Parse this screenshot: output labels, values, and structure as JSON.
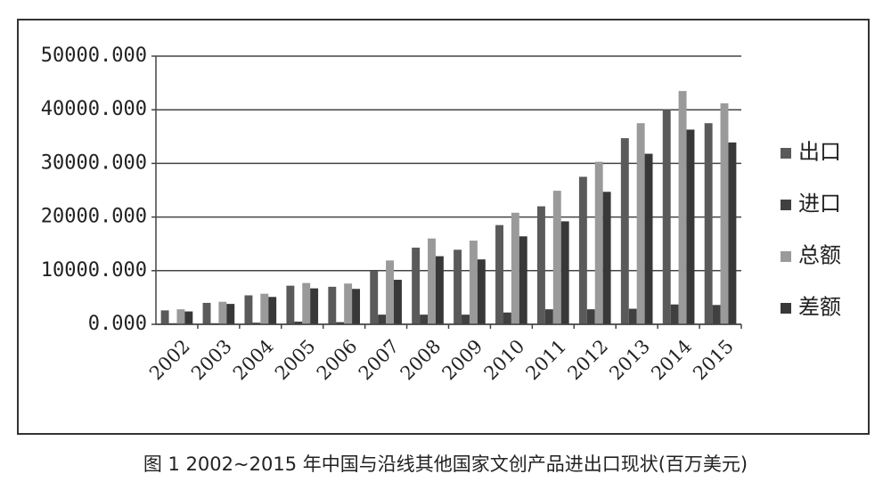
{
  "chart_data": {
    "type": "bar",
    "title": "图 1   2002~2015 年中国与沿线其他国家文创产品进出口现状(百万美元)",
    "categories": [
      "2002",
      "2003",
      "2004",
      "2005",
      "2006",
      "2007",
      "2008",
      "2009",
      "2010",
      "2011",
      "2012",
      "2013",
      "2014",
      "2015"
    ],
    "series": [
      {
        "name": "出口",
        "color": "#5a5a5a",
        "values": [
          2600,
          4000,
          5400,
          7200,
          7000,
          10000,
          14300,
          13900,
          18500,
          22000,
          27500,
          34700,
          40000,
          37500
        ]
      },
      {
        "name": "进口",
        "color": "#404040",
        "values": [
          200,
          200,
          300,
          500,
          400,
          1800,
          1800,
          1800,
          2200,
          2800,
          2800,
          2900,
          3700,
          3600
        ]
      },
      {
        "name": "总额",
        "color": "#9a9a9a",
        "values": [
          2800,
          4200,
          5700,
          7700,
          7600,
          11900,
          16000,
          15600,
          20800,
          24900,
          30300,
          37500,
          43500,
          41200
        ]
      },
      {
        "name": "差额",
        "color": "#383838",
        "values": [
          2400,
          3800,
          5100,
          6700,
          6600,
          8300,
          12700,
          12100,
          16400,
          19200,
          24700,
          31800,
          36300,
          33900
        ]
      }
    ],
    "ylim": [
      0,
      50000
    ],
    "yticks": [
      {
        "value": 0,
        "label": "0.000"
      },
      {
        "value": 10000,
        "label": "10000.000"
      },
      {
        "value": 20000,
        "label": "20000.000"
      },
      {
        "value": 30000,
        "label": "30000.000"
      },
      {
        "value": 40000,
        "label": "40000.000"
      },
      {
        "value": 50000,
        "label": "50000.000"
      }
    ],
    "grid": true,
    "legend": "right"
  }
}
